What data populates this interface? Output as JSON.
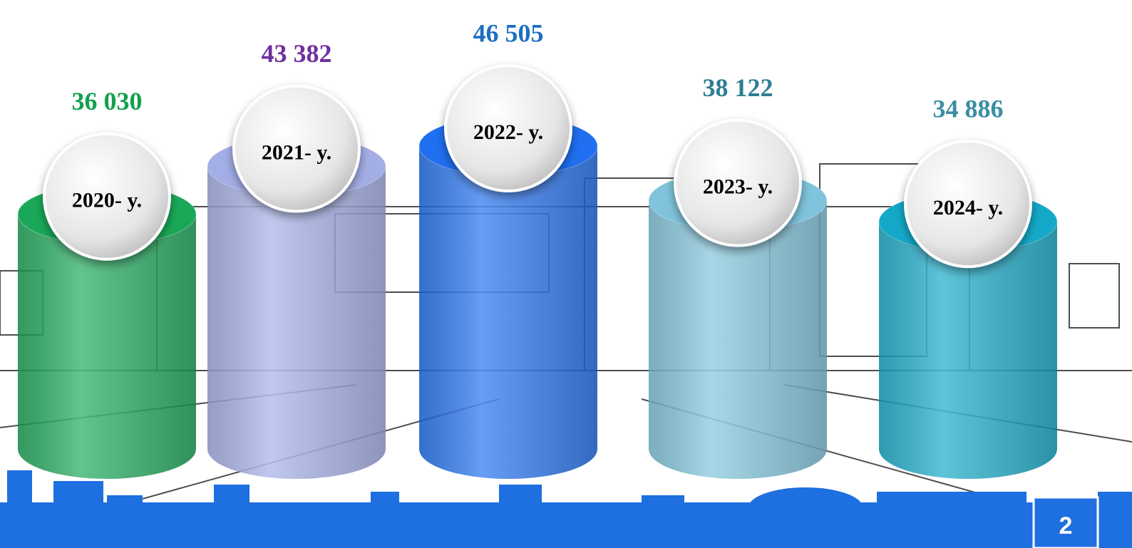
{
  "chart_data": {
    "type": "cylinder",
    "categories": [
      "2020- y.",
      "2021- y.",
      "2022- y.",
      "2023- y.",
      "2024- y."
    ],
    "values": [
      36030,
      43382,
      46505,
      38122,
      34886
    ],
    "value_labels": [
      "36 030",
      "43 382",
      "46 505",
      "38 122",
      "34 886"
    ],
    "colors": [
      "#1aa858",
      "#a3aee6",
      "#1f6ff0",
      "#7fc4dc",
      "#14a9c8"
    ],
    "label_colors": [
      "#13a04f",
      "#7030a0",
      "#1f6fc0",
      "#2e7f93",
      "#3a8ea4"
    ]
  },
  "slide_number": "2"
}
